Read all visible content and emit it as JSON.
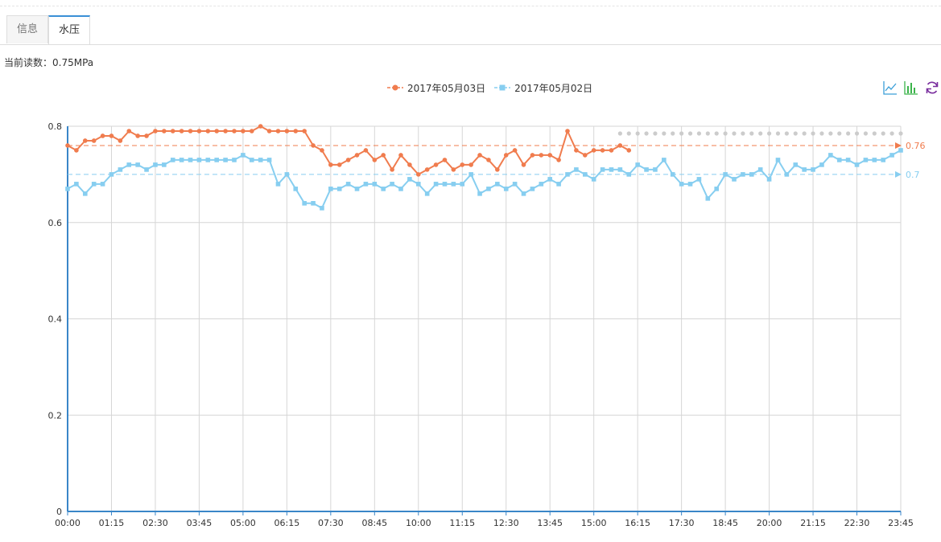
{
  "tabs": [
    {
      "label": "信息",
      "active": false
    },
    {
      "label": "水压",
      "active": true
    }
  ],
  "reading": {
    "text": "当前读数：0.75MPa"
  },
  "toolbox": [
    {
      "icon": "line-chart-icon"
    },
    {
      "icon": "bar-chart-icon"
    },
    {
      "icon": "refresh-icon"
    }
  ],
  "colors": {
    "series1": "#f07c4e",
    "series2": "#87cef0",
    "projection": "#cccccc",
    "axis": "#3a86c8",
    "grid": "#d6d6d6"
  },
  "chart_data": {
    "type": "line",
    "x_tick_labels": [
      "00:00",
      "01:15",
      "02:30",
      "03:45",
      "05:00",
      "06:15",
      "07:30",
      "08:45",
      "10:00",
      "11:15",
      "12:30",
      "13:45",
      "15:00",
      "16:15",
      "17:30",
      "18:45",
      "20:00",
      "21:15",
      "22:30",
      "23:45"
    ],
    "x_unit_minutes": 15,
    "y_tick_labels": [
      "0",
      "0.2",
      "0.4",
      "0.6",
      "0.8"
    ],
    "ylim": [
      0,
      0.8
    ],
    "grid": true,
    "legend": "top-center",
    "series": [
      {
        "name": "2017年05月03日",
        "marker": "circle",
        "values": [
          0.76,
          0.75,
          0.77,
          0.77,
          0.78,
          0.78,
          0.77,
          0.79,
          0.78,
          0.78,
          0.79,
          0.79,
          0.79,
          0.79,
          0.79,
          0.79,
          0.79,
          0.79,
          0.79,
          0.79,
          0.79,
          0.79,
          0.8,
          0.79,
          0.79,
          0.79,
          0.79,
          0.79,
          0.76,
          0.75,
          0.72,
          0.72,
          0.73,
          0.74,
          0.75,
          0.73,
          0.74,
          0.71,
          0.74,
          0.72,
          0.7,
          0.71,
          0.72,
          0.73,
          0.71,
          0.72,
          0.72,
          0.74,
          0.73,
          0.71,
          0.74,
          0.75,
          0.72,
          0.74,
          0.74,
          0.74,
          0.73,
          0.79,
          0.75,
          0.74,
          0.75,
          0.75,
          0.75,
          0.76,
          0.75
        ],
        "mark_line": {
          "value": 0.76,
          "label": "0.76"
        }
      },
      {
        "name": "2017年05月02日",
        "marker": "square",
        "values": [
          0.67,
          0.68,
          0.66,
          0.68,
          0.68,
          0.7,
          0.71,
          0.72,
          0.72,
          0.71,
          0.72,
          0.72,
          0.73,
          0.73,
          0.73,
          0.73,
          0.73,
          0.73,
          0.73,
          0.73,
          0.74,
          0.73,
          0.73,
          0.73,
          0.68,
          0.7,
          0.67,
          0.64,
          0.64,
          0.63,
          0.67,
          0.67,
          0.68,
          0.67,
          0.68,
          0.68,
          0.67,
          0.68,
          0.67,
          0.69,
          0.68,
          0.66,
          0.68,
          0.68,
          0.68,
          0.68,
          0.7,
          0.66,
          0.67,
          0.68,
          0.67,
          0.68,
          0.66,
          0.67,
          0.68,
          0.69,
          0.68,
          0.7,
          0.71,
          0.7,
          0.69,
          0.71,
          0.71,
          0.71,
          0.7,
          0.72,
          0.71,
          0.71,
          0.73,
          0.7,
          0.68,
          0.68,
          0.69,
          0.65,
          0.67,
          0.7,
          0.69,
          0.7,
          0.7,
          0.71,
          0.69,
          0.73,
          0.7,
          0.72,
          0.71,
          0.71,
          0.72,
          0.74,
          0.73,
          0.73,
          0.72,
          0.73,
          0.73,
          0.73,
          0.74,
          0.75
        ],
        "mark_line": {
          "value": 0.7,
          "label": "0.7"
        }
      }
    ],
    "projection": {
      "value": 0.785,
      "from_index": 63,
      "to_index": 95
    }
  }
}
